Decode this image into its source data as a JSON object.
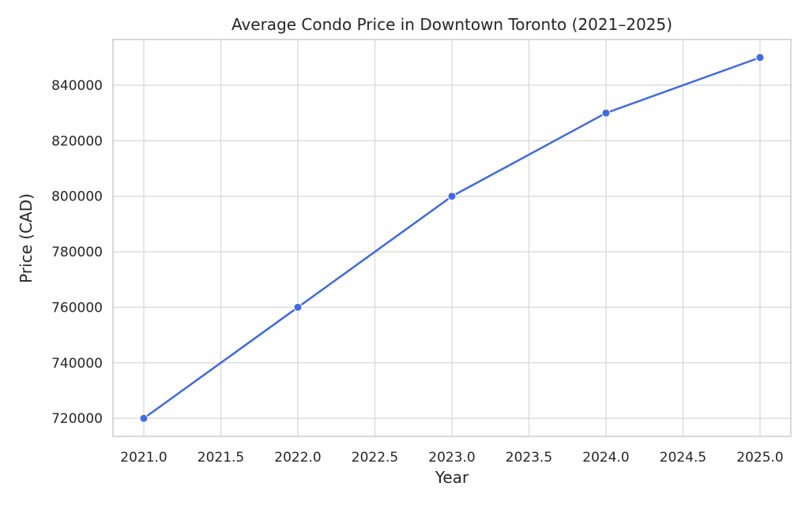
{
  "chart_data": {
    "type": "line",
    "title": "Average Condo Price in Downtown Toronto (2021–2025)",
    "xlabel": "Year",
    "ylabel": "Price (CAD)",
    "x": [
      2021,
      2022,
      2023,
      2024,
      2025
    ],
    "series": [
      {
        "values": [
          720000,
          760000,
          800000,
          830000,
          850000
        ]
      }
    ],
    "xlim": [
      2020.8,
      2025.2
    ],
    "ylim": [
      713500,
      856500
    ],
    "x_ticks": [
      2021.0,
      2021.5,
      2022.0,
      2022.5,
      2023.0,
      2023.5,
      2024.0,
      2024.5,
      2025.0
    ],
    "x_tick_labels": [
      "2021.0",
      "2021.5",
      "2022.0",
      "2022.5",
      "2023.0",
      "2023.5",
      "2024.0",
      "2024.5",
      "2025.0"
    ],
    "y_ticks": [
      720000,
      740000,
      760000,
      780000,
      800000,
      820000,
      840000
    ],
    "y_tick_labels": [
      "720000",
      "740000",
      "760000",
      "780000",
      "800000",
      "820000",
      "840000"
    ],
    "grid": true,
    "colors": {
      "line": "#4169e1",
      "grid": "#dddddd",
      "frame": "#cccccc"
    }
  }
}
